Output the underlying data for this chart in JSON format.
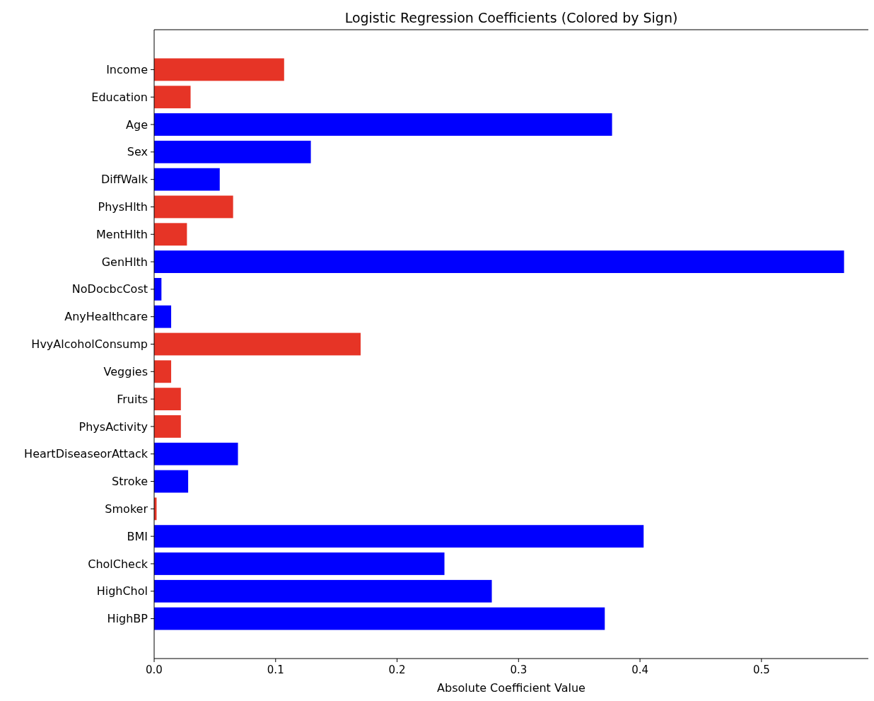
{
  "chart_data": {
    "type": "bar",
    "orientation": "horizontal",
    "title": "Logistic Regression Coefficients (Colored by Sign)",
    "xlabel": "Absolute Coefficient Value",
    "categories": [
      "Income",
      "Education",
      "Age",
      "Sex",
      "DiffWalk",
      "PhysHlth",
      "MentHlth",
      "GenHlth",
      "NoDocbcCost",
      "AnyHealthcare",
      "HvyAlcoholConsump",
      "Veggies",
      "Fruits",
      "PhysActivity",
      "HeartDiseaseorAttack",
      "Stroke",
      "Smoker",
      "BMI",
      "CholCheck",
      "HighChol",
      "HighBP"
    ],
    "values": [
      0.107,
      0.03,
      0.377,
      0.129,
      0.054,
      0.065,
      0.027,
      0.568,
      0.006,
      0.014,
      0.17,
      0.014,
      0.022,
      0.022,
      0.069,
      0.028,
      0.002,
      0.403,
      0.239,
      0.278,
      0.371
    ],
    "colors": [
      "#e63426",
      "#e63426",
      "#0000ff",
      "#0000ff",
      "#0000ff",
      "#e63426",
      "#e63426",
      "#0000ff",
      "#0000ff",
      "#0000ff",
      "#e63426",
      "#e63426",
      "#e63426",
      "#e63426",
      "#0000ff",
      "#0000ff",
      "#e63426",
      "#0000ff",
      "#0000ff",
      "#0000ff",
      "#0000ff"
    ],
    "xlim": [
      0,
      0.588
    ],
    "xticks": [
      {
        "value": 0,
        "label": "0.0"
      },
      0.1,
      0.2,
      0.3,
      0.4,
      0.5
    ],
    "grid": false
  }
}
